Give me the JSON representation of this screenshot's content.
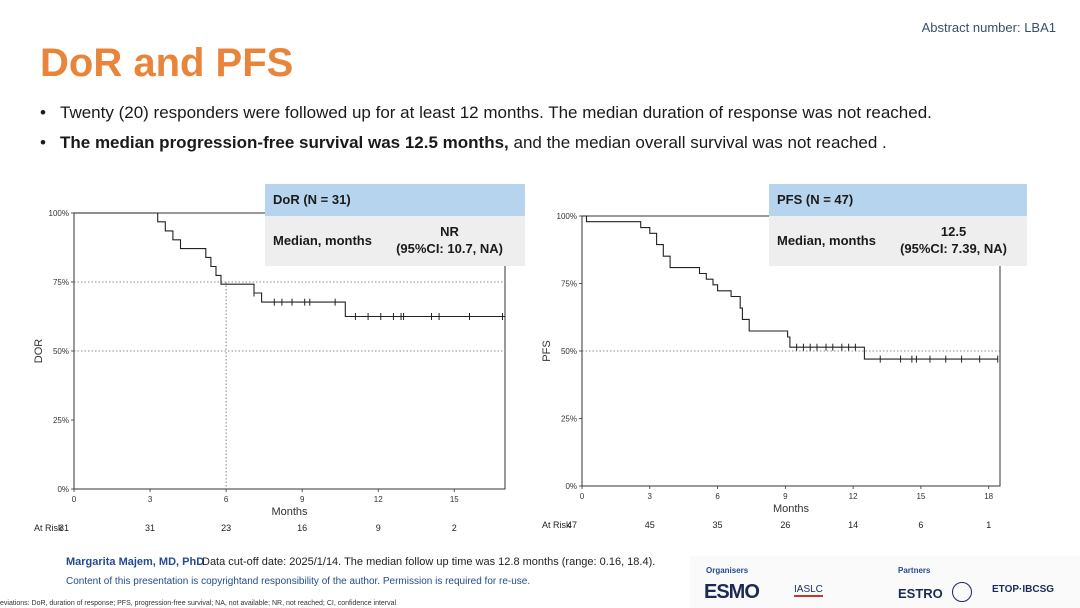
{
  "header": {
    "abstract_number": "Abstract number: LBA1",
    "title": "DoR and PFS"
  },
  "bullets": {
    "b1": "Twenty (20) responders were followed up for at least 12 months. The median duration of response was not reached.",
    "b2_bold": "The median progression-free survival was 12.5 months,",
    "b2_rest": " and the median overall survival was not reached ."
  },
  "boxes": {
    "dor": {
      "header": "DoR (N = 31)",
      "label": "Median, months",
      "value": "NR",
      "ci": "(95%CI: 10.7, NA)"
    },
    "pfs": {
      "header": "PFS (N = 47)",
      "label": "Median, months",
      "value": "12.5",
      "ci": "(95%CI: 7.39, NA)"
    }
  },
  "footer": {
    "author": "Margarita Majem, MD, PhD",
    "cutoff": "Data cut-off date: 2025/1/14. The median follow up time was 12.8 months (range: 0.16, 18.4).",
    "copyright": "Content of this presentation is copyrightand responsibility of the author. Permission is required for re-use.",
    "abbrev": "eviations: DoR, duration of response; PFS, progression-free survival; NA, not available; NR, not reached; CI, confidence interval",
    "organisers_label": "Organisers",
    "partners_label": "Partners",
    "logos": {
      "esmo": "ESMO",
      "iaslc": "IASLC",
      "estro": "ESTRO",
      "etop": "ETOP·IBCSG"
    }
  },
  "chart_data": [
    {
      "type": "line",
      "ylabel": "DOR",
      "xlabel": "Months",
      "xlim": [
        0,
        17
      ],
      "ylim": [
        0,
        100
      ],
      "xticks": [
        0,
        3,
        6,
        9,
        12,
        15
      ],
      "yticks": [
        0,
        25,
        50,
        75,
        100
      ],
      "ytick_labels": [
        "0%",
        "25%",
        "50%",
        "75%",
        "100%"
      ],
      "reference_lines": [
        50,
        75
      ],
      "median_marker_x": 6,
      "at_risk_label": "At Risk",
      "at_risk": [
        31,
        31,
        23,
        16,
        9,
        2
      ],
      "series": [
        {
          "points": [
            [
              0,
              100
            ],
            [
              3.3,
              100
            ],
            [
              3.3,
              96.8
            ],
            [
              3.6,
              96.8
            ],
            [
              3.6,
              93.5
            ],
            [
              3.9,
              93.5
            ],
            [
              3.9,
              90.3
            ],
            [
              4.2,
              90.3
            ],
            [
              4.2,
              87.1
            ],
            [
              5.2,
              87.1
            ],
            [
              5.2,
              83.9
            ],
            [
              5.4,
              83.9
            ],
            [
              5.4,
              80.6
            ],
            [
              5.6,
              80.6
            ],
            [
              5.6,
              77.4
            ],
            [
              5.8,
              77.4
            ],
            [
              5.8,
              74.2
            ],
            [
              7.1,
              74.2
            ],
            [
              7.1,
              71.0
            ],
            [
              7.4,
              71.0
            ],
            [
              7.4,
              67.7
            ],
            [
              10.7,
              67.7
            ],
            [
              10.7,
              62.5
            ],
            [
              17,
              62.5
            ]
          ],
          "censored": [
            [
              7.1,
              71.0
            ],
            [
              7.9,
              67.7
            ],
            [
              8.2,
              67.7
            ],
            [
              8.6,
              67.7
            ],
            [
              9.1,
              67.7
            ],
            [
              9.3,
              67.7
            ],
            [
              10.3,
              67.7
            ],
            [
              11.1,
              62.5
            ],
            [
              11.6,
              62.5
            ],
            [
              12.1,
              62.5
            ],
            [
              12.6,
              62.5
            ],
            [
              12.9,
              62.5
            ],
            [
              13.0,
              62.5
            ],
            [
              14.1,
              62.5
            ],
            [
              14.4,
              62.5
            ],
            [
              15.6,
              62.5
            ],
            [
              16.9,
              62.5
            ]
          ]
        }
      ]
    },
    {
      "type": "line",
      "ylabel": "PFS",
      "xlabel": "Months",
      "xlim": [
        0,
        18.5
      ],
      "ylim": [
        0,
        100
      ],
      "xticks": [
        0,
        3,
        6,
        9,
        12,
        15,
        18
      ],
      "yticks": [
        0,
        25,
        50,
        75,
        100
      ],
      "ytick_labels": [
        "0%",
        "25%",
        "50%",
        "75%",
        "100%"
      ],
      "reference_lines": [
        50
      ],
      "at_risk_label": "At Risk",
      "at_risk": [
        47,
        45,
        35,
        26,
        14,
        6,
        1
      ],
      "series": [
        {
          "points": [
            [
              0,
              100
            ],
            [
              0.2,
              100
            ],
            [
              0.2,
              97.9
            ],
            [
              2.6,
              97.9
            ],
            [
              2.6,
              95.7
            ],
            [
              3.0,
              95.7
            ],
            [
              3.0,
              93.6
            ],
            [
              3.3,
              93.6
            ],
            [
              3.3,
              89.4
            ],
            [
              3.6,
              89.4
            ],
            [
              3.6,
              85.1
            ],
            [
              3.9,
              85.1
            ],
            [
              3.9,
              80.9
            ],
            [
              5.2,
              80.9
            ],
            [
              5.2,
              78.7
            ],
            [
              5.5,
              78.7
            ],
            [
              5.5,
              76.6
            ],
            [
              5.8,
              76.6
            ],
            [
              5.8,
              74.5
            ],
            [
              6.0,
              74.5
            ],
            [
              6.0,
              72.3
            ],
            [
              6.6,
              72.3
            ],
            [
              6.6,
              70.2
            ],
            [
              7.0,
              70.2
            ],
            [
              7.0,
              65.9
            ],
            [
              7.1,
              65.9
            ],
            [
              7.1,
              61.7
            ],
            [
              7.4,
              61.7
            ],
            [
              7.4,
              57.4
            ],
            [
              9.1,
              57.4
            ],
            [
              9.1,
              55.2
            ],
            [
              9.2,
              55.2
            ],
            [
              9.2,
              51.4
            ],
            [
              12.5,
              51.4
            ],
            [
              12.5,
              47.0
            ],
            [
              18.4,
              47.0
            ]
          ],
          "censored": [
            [
              9.5,
              51.4
            ],
            [
              9.8,
              51.4
            ],
            [
              10.1,
              51.4
            ],
            [
              10.4,
              51.4
            ],
            [
              10.8,
              51.4
            ],
            [
              11.1,
              51.4
            ],
            [
              11.5,
              51.4
            ],
            [
              11.8,
              51.4
            ],
            [
              12.1,
              51.4
            ],
            [
              13.2,
              47.0
            ],
            [
              14.1,
              47.0
            ],
            [
              14.6,
              47.0
            ],
            [
              14.8,
              47.0
            ],
            [
              15.4,
              47.0
            ],
            [
              16.1,
              47.0
            ],
            [
              16.8,
              47.0
            ],
            [
              17.6,
              47.0
            ],
            [
              18.4,
              47.0
            ]
          ]
        }
      ]
    }
  ]
}
